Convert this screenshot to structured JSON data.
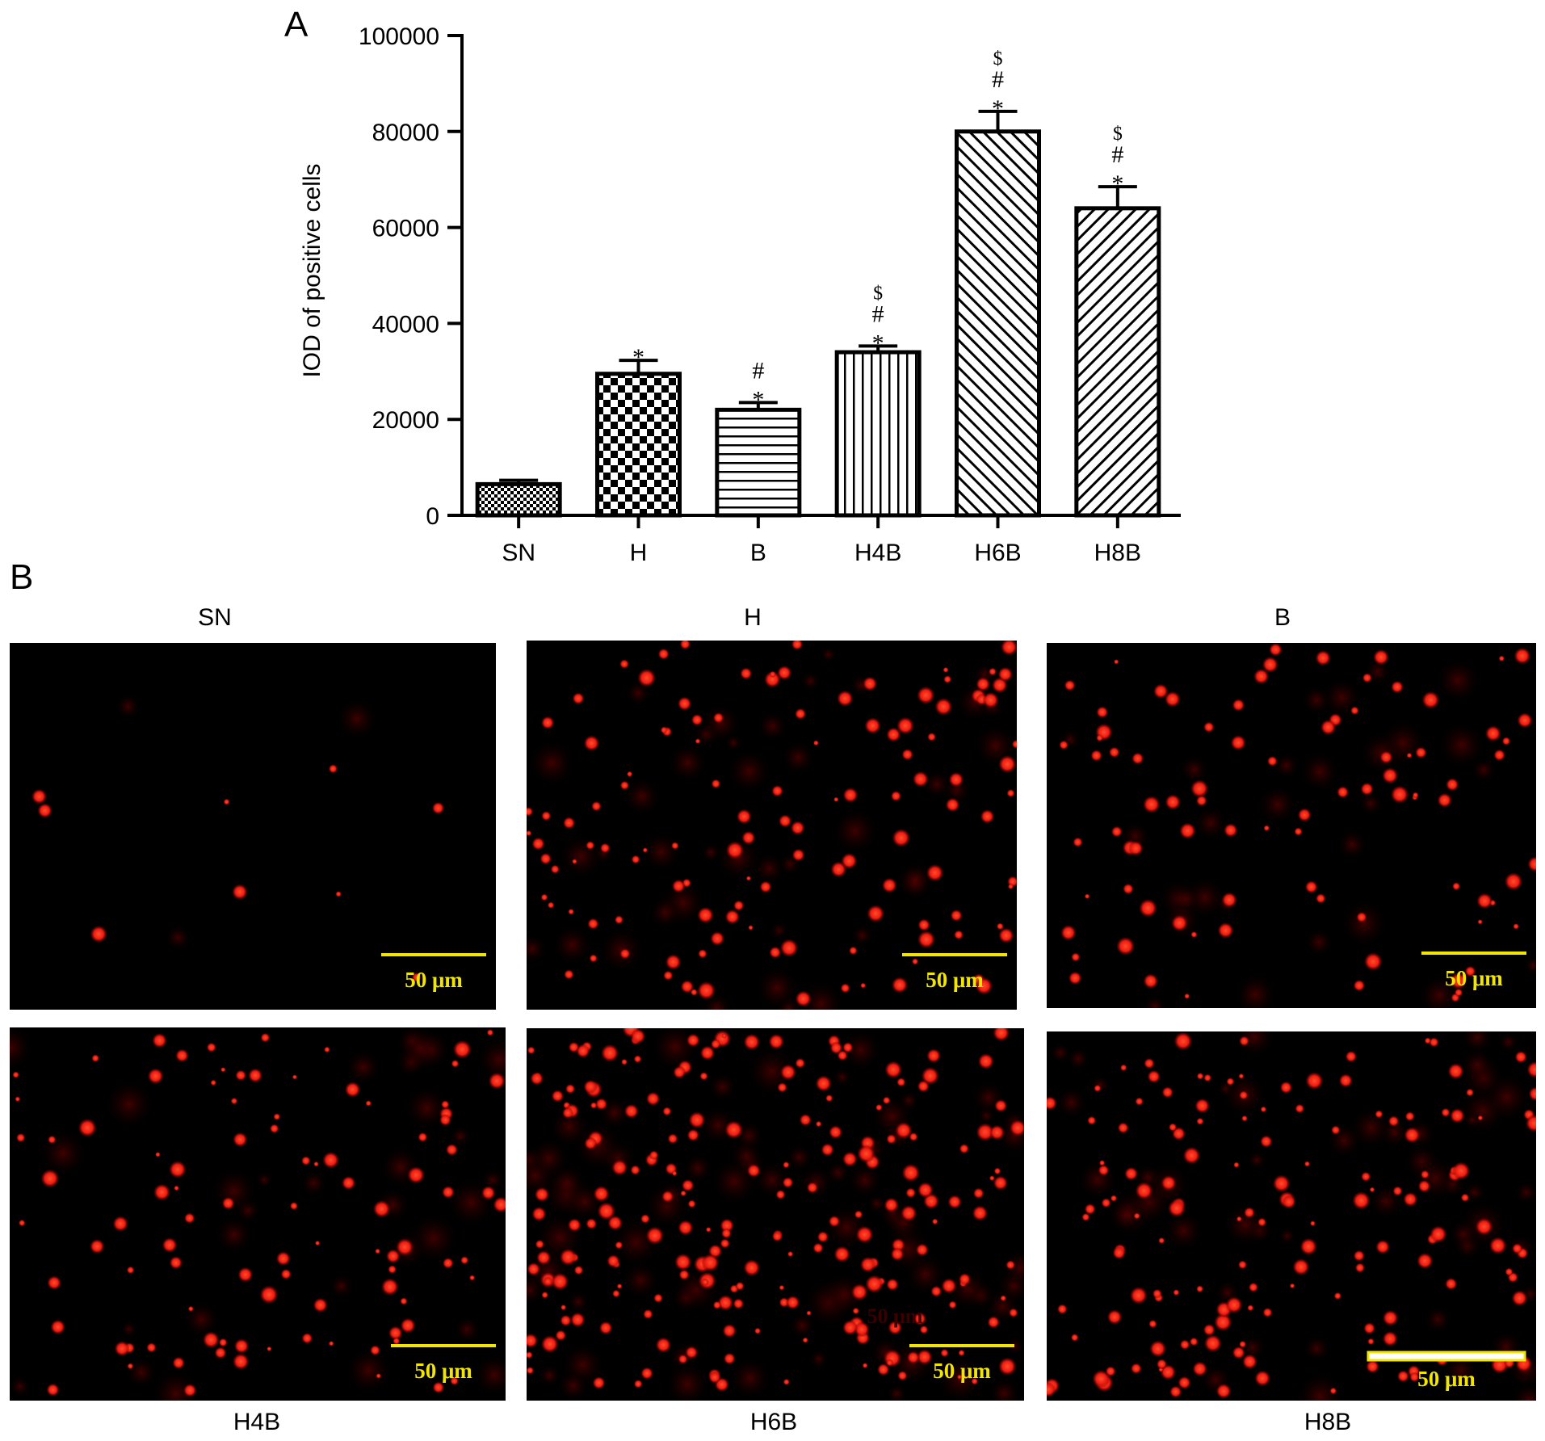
{
  "panel_labels": {
    "a": "A",
    "b": "B"
  },
  "chart_data": {
    "type": "bar",
    "title": "",
    "xlabel": "",
    "ylabel": "IOD of positive cells",
    "ylim": [
      0,
      100000
    ],
    "yticks": [
      0,
      20000,
      40000,
      60000,
      80000,
      100000
    ],
    "categories": [
      "SN",
      "H",
      "B",
      "H4B",
      "H6B",
      "H8B"
    ],
    "values": [
      6500,
      29500,
      22000,
      34000,
      80000,
      64000
    ],
    "errors": [
      800,
      2800,
      1500,
      1300,
      4200,
      4500
    ],
    "patterns": [
      "dots",
      "checker",
      "horizontal",
      "vertical",
      "diagonal-right",
      "diagonal-left"
    ],
    "significance": [
      [],
      [
        "*"
      ],
      [
        "#",
        "*"
      ],
      [
        "$",
        "#",
        "*"
      ],
      [
        "$",
        "#",
        "*"
      ],
      [
        "$",
        "#",
        "*"
      ]
    ],
    "grid": false,
    "legend": "none"
  },
  "micrographs": [
    {
      "label": "SN",
      "scale_bar": "50 μm",
      "density": "sparse"
    },
    {
      "label": "H",
      "scale_bar": "50 μm",
      "density": "dense"
    },
    {
      "label": "B",
      "scale_bar": "50 μm",
      "density": "moderate"
    },
    {
      "label": "H4B",
      "scale_bar": "50 μm",
      "density": "moderate"
    },
    {
      "label": "H6B",
      "scale_bar": "50 μm",
      "density": "very dense"
    },
    {
      "label": "H8B",
      "scale_bar": "50 μm",
      "density": "dense"
    }
  ],
  "colors": {
    "signal": "#ff1a1a",
    "background": "#000000",
    "scale_bar": "#f2e600"
  }
}
